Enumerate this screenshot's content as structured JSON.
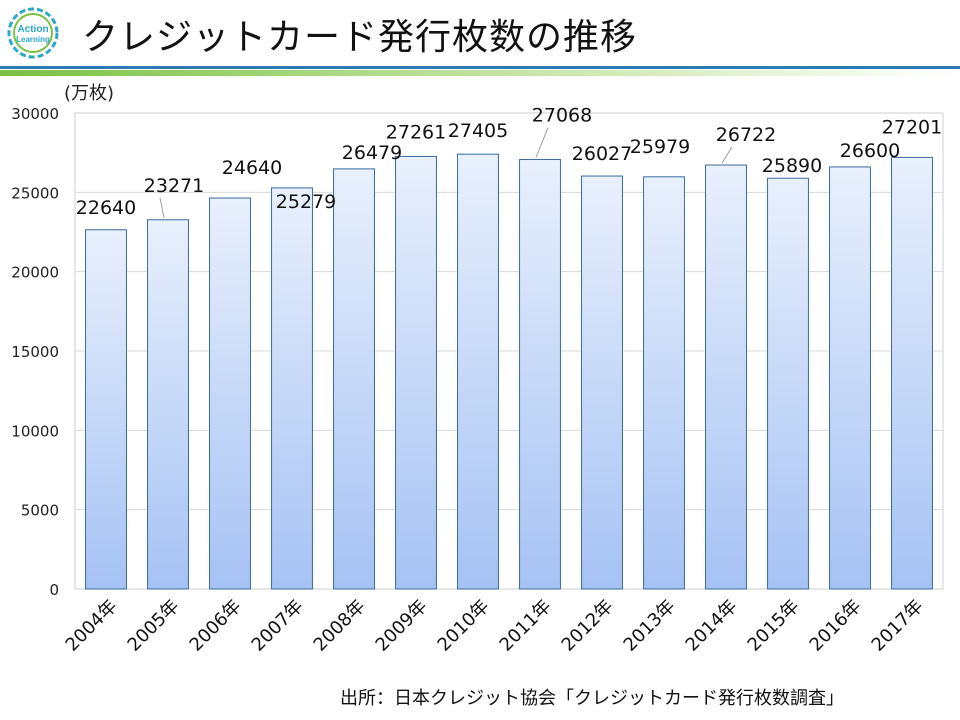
{
  "header": {
    "title": "クレジットカード発行枚数の推移",
    "logo_text_line1": "Action",
    "logo_text_line2": "Learning"
  },
  "colors": {
    "accent_green": "#7ac143",
    "accent_blue": "#2e7bb3",
    "bar_top": "#e8f0fc",
    "bar_bottom": "#a6c2f4",
    "bar_stroke": "#3b6aa0"
  },
  "chart_data": {
    "type": "bar",
    "title": "",
    "unit_label": "(万枚)",
    "xlabel": "",
    "ylabel": "",
    "ylim": [
      0,
      30000
    ],
    "yticks": [
      0,
      5000,
      10000,
      15000,
      20000,
      25000,
      30000
    ],
    "grid": true,
    "categories": [
      "2004年",
      "2005年",
      "2006年",
      "2007年",
      "2008年",
      "2009年",
      "2010年",
      "2011年",
      "2012年",
      "2013年",
      "2014年",
      "2015年",
      "2016年",
      "2017年"
    ],
    "values": [
      22640,
      23271,
      24640,
      25279,
      26479,
      27261,
      27405,
      27068,
      26027,
      25979,
      26722,
      25890,
      26600,
      27201
    ]
  },
  "footer": {
    "source": "出所：日本クレジット協会「クレジットカード発行枚数調査」"
  }
}
